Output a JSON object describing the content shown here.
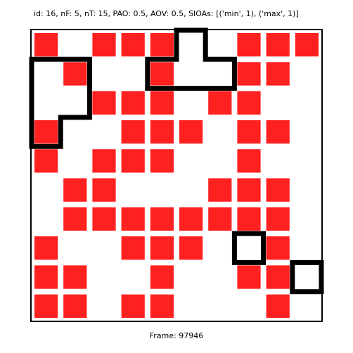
{
  "header": {
    "title": "id: 16, nF: 5, nT: 15, PAO: 0.5, AOV: 0.5, SIOAs: [('min', 1), ('max', 1)]"
  },
  "footer": {
    "frame_label": "Frame: 97946"
  },
  "board": {
    "rows": 10,
    "cols": 10,
    "cell_color": "#ff2020",
    "outline_color": "#000000",
    "grid": [
      [
        1,
        0,
        1,
        1,
        1,
        0,
        0,
        1,
        1,
        1
      ],
      [
        0,
        1,
        0,
        0,
        1,
        0,
        0,
        1,
        1,
        0
      ],
      [
        0,
        0,
        1,
        1,
        1,
        0,
        1,
        1,
        0,
        0
      ],
      [
        1,
        0,
        0,
        1,
        1,
        1,
        0,
        1,
        1,
        0
      ],
      [
        1,
        0,
        1,
        1,
        1,
        0,
        0,
        1,
        0,
        0
      ],
      [
        0,
        1,
        1,
        0,
        0,
        0,
        1,
        1,
        1,
        0
      ],
      [
        0,
        1,
        1,
        1,
        1,
        1,
        1,
        1,
        1,
        0
      ],
      [
        1,
        0,
        0,
        1,
        1,
        1,
        0,
        0,
        1,
        0
      ],
      [
        1,
        1,
        0,
        0,
        1,
        0,
        0,
        1,
        1,
        0
      ],
      [
        1,
        1,
        0,
        1,
        1,
        0,
        0,
        0,
        1,
        0
      ]
    ],
    "outlines": [
      {
        "name": "left-diagonal-region-outline",
        "points": [
          [
            0,
            1
          ],
          [
            2,
            1
          ],
          [
            2,
            3
          ],
          [
            1,
            3
          ],
          [
            1,
            4
          ],
          [
            0,
            4
          ]
        ]
      },
      {
        "name": "top-rect-region-outline",
        "points": [
          [
            5,
            0
          ],
          [
            5,
            1
          ],
          [
            4,
            1
          ],
          [
            4,
            2
          ],
          [
            7,
            2
          ],
          [
            7,
            1
          ],
          [
            6,
            1
          ],
          [
            6,
            0
          ]
        ]
      },
      {
        "name": "small-ring-outline",
        "points": [
          [
            7,
            7
          ],
          [
            8,
            7
          ],
          [
            8,
            8
          ],
          [
            7,
            8
          ]
        ]
      },
      {
        "name": "right-edge-region-outline",
        "points": [
          [
            10,
            8
          ],
          [
            9,
            8
          ],
          [
            9,
            9
          ],
          [
            10,
            9
          ]
        ]
      }
    ]
  }
}
